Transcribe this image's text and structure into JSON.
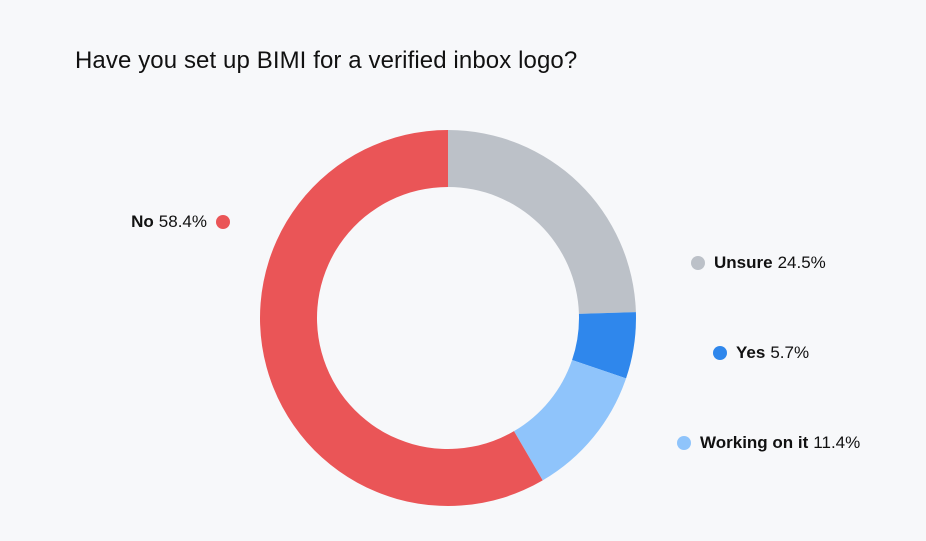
{
  "chart_data": {
    "type": "pie",
    "variant": "donut",
    "title": "Have you set up BIMI for a verified inbox logo?",
    "categories": [
      "Unsure",
      "Yes",
      "Working on it",
      "No"
    ],
    "values": [
      24.5,
      5.7,
      11.4,
      58.4
    ],
    "value_labels": [
      "24.5%",
      "5.7%",
      "11.4%",
      "58.4%"
    ],
    "colors": [
      "#bcc1c8",
      "#2f87ec",
      "#8fc4fb",
      "#ea5557"
    ],
    "start_angle_deg": 0,
    "direction": "clockwise",
    "legend": "labels beside slices"
  }
}
